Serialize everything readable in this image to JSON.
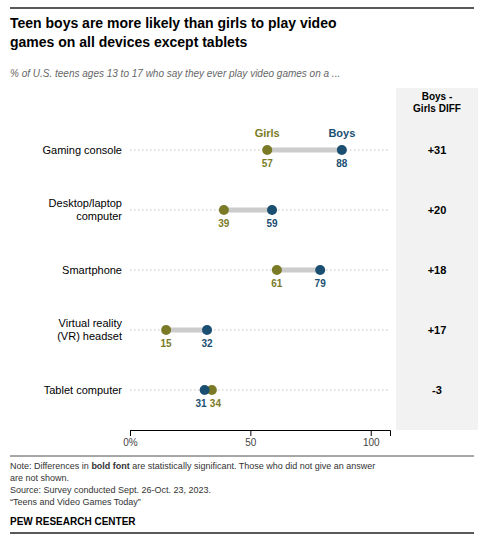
{
  "chart_data": {
    "type": "dumbbell",
    "title": [
      "Teen boys are more likely than girls to play video",
      "games on all devices except tablets"
    ],
    "subtitle": "% of U.S. teens ages 13 to 17 who say they ever play video games on a ...",
    "categories": [
      "Gaming console",
      "Desktop/laptop\ncomputer",
      "Smartphone",
      "Virtual reality\n(VR) headset",
      "Tablet computer"
    ],
    "series": [
      {
        "name": "Girls",
        "color": "#7b7b27",
        "values": [
          57,
          39,
          61,
          15,
          34
        ]
      },
      {
        "name": "Boys",
        "color": "#1b4f72",
        "values": [
          88,
          59,
          79,
          32,
          31
        ]
      }
    ],
    "diff_column": {
      "title": "Boys -\nGirls DIFF",
      "values": [
        31,
        20,
        18,
        17,
        -3
      ],
      "value_labels": [
        "+31",
        "+20",
        "+18",
        "+17",
        "-3"
      ]
    },
    "xlim": [
      0,
      108
    ],
    "xticks": [
      {
        "value": 0,
        "label": "0%"
      },
      50,
      100
    ],
    "data_labels": true,
    "notes": [
      [
        "Note: Differences in ",
        "bold font",
        " are statistically significant. Those who did not give an answer"
      ],
      [
        "are not shown."
      ],
      [
        "Source: Survey conducted Sept. 26-Oct. 23, 2023."
      ],
      [
        "“Teens and Video Games Today”"
      ]
    ],
    "source": "PEW RESEARCH CENTER"
  }
}
